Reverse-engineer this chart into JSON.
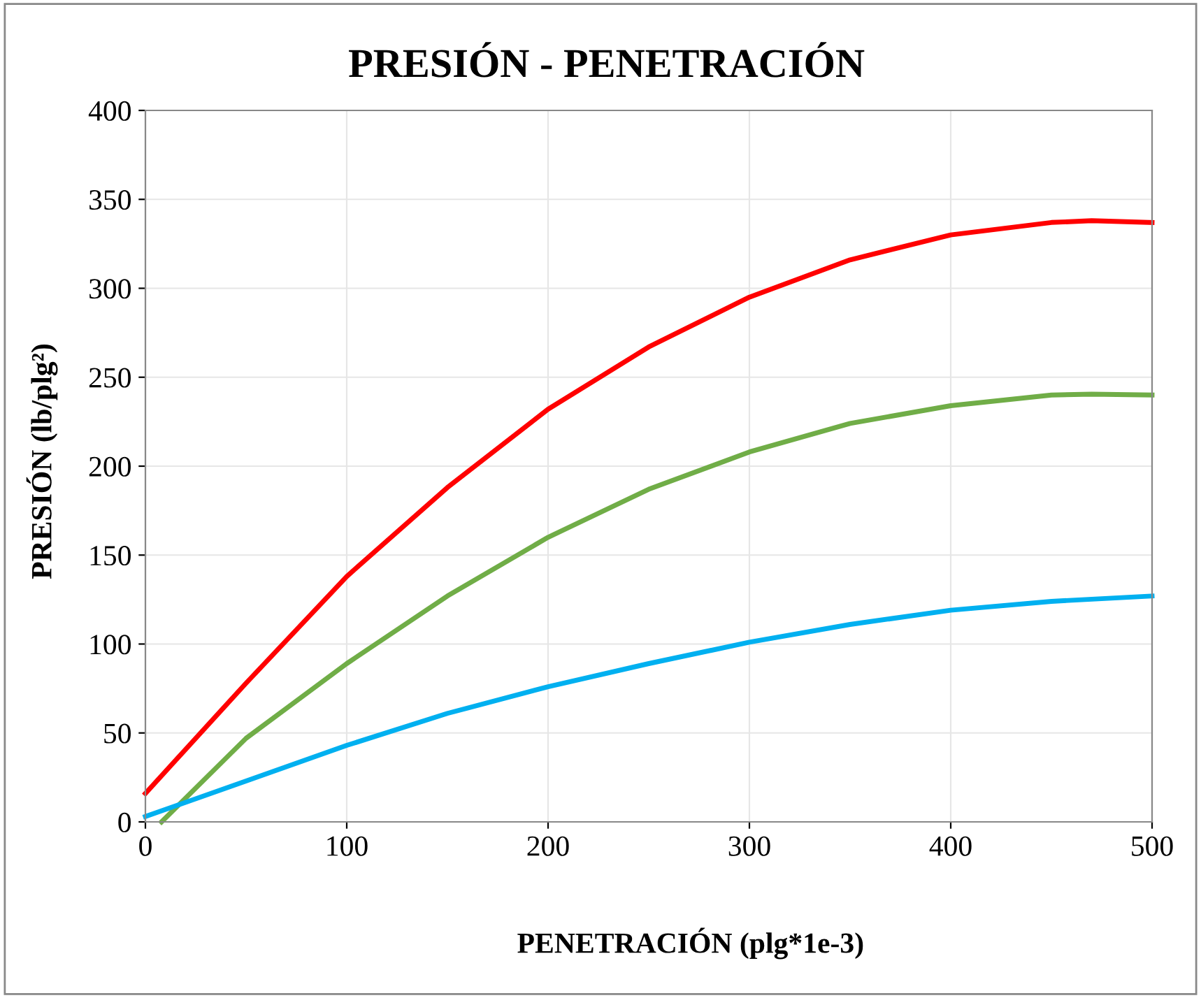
{
  "chart_data": {
    "type": "line",
    "title": "PRESIÓN - PENETRACIÓN",
    "xlabel": "PENETRACIÓN (plg*1e-3)",
    "ylabel": "PRESIÓN (lb/plg²)",
    "series": [
      {
        "color": "#ff0000",
        "x": [
          0,
          50,
          100,
          150,
          200,
          250,
          300,
          350,
          400,
          450,
          470,
          500
        ],
        "values": [
          16,
          78,
          138,
          188,
          232,
          267,
          295,
          316,
          330,
          337,
          338,
          337
        ]
      },
      {
        "color": "#70ad47",
        "x": [
          8,
          50,
          100,
          150,
          200,
          250,
          300,
          350,
          400,
          450,
          470,
          500
        ],
        "values": [
          0,
          47,
          89,
          127,
          160,
          187,
          208,
          224,
          234,
          240,
          240.5,
          240
        ]
      },
      {
        "color": "#00b0f0",
        "x": [
          0,
          50,
          100,
          150,
          200,
          250,
          300,
          350,
          400,
          450,
          500
        ],
        "values": [
          3,
          23,
          43,
          61,
          76,
          89,
          101,
          111,
          119,
          124,
          127
        ]
      }
    ],
    "xlim": [
      0,
      500
    ],
    "xticks": [
      0,
      100,
      200,
      300,
      400,
      500
    ],
    "ylim": [
      0,
      400
    ],
    "yticks": [
      0,
      50,
      100,
      150,
      200,
      250,
      300,
      350,
      400
    ],
    "grid": true,
    "legend": false,
    "marker": "none",
    "line_style": "solid"
  }
}
